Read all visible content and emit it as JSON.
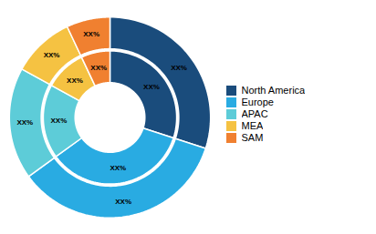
{
  "chart_data": {
    "type": "pie",
    "categories": [
      "North America",
      "Europe",
      "APAC",
      "MEA",
      "SAM"
    ],
    "colors": [
      "#1a4c7c",
      "#29abe2",
      "#5dccd8",
      "#f5c242",
      "#f08030"
    ],
    "series": [
      {
        "values": [
          30,
          35,
          18,
          10,
          7
        ],
        "value_labels": [
          "XX%",
          "XX%",
          "XX%",
          "XX%",
          "XX%"
        ]
      },
      {
        "values": [
          30,
          35,
          18,
          10,
          7
        ],
        "value_labels": [
          "XX%",
          "XX%",
          "XX%",
          "XX%",
          "XX%"
        ]
      }
    ],
    "data_labels": true,
    "legend": "right"
  }
}
